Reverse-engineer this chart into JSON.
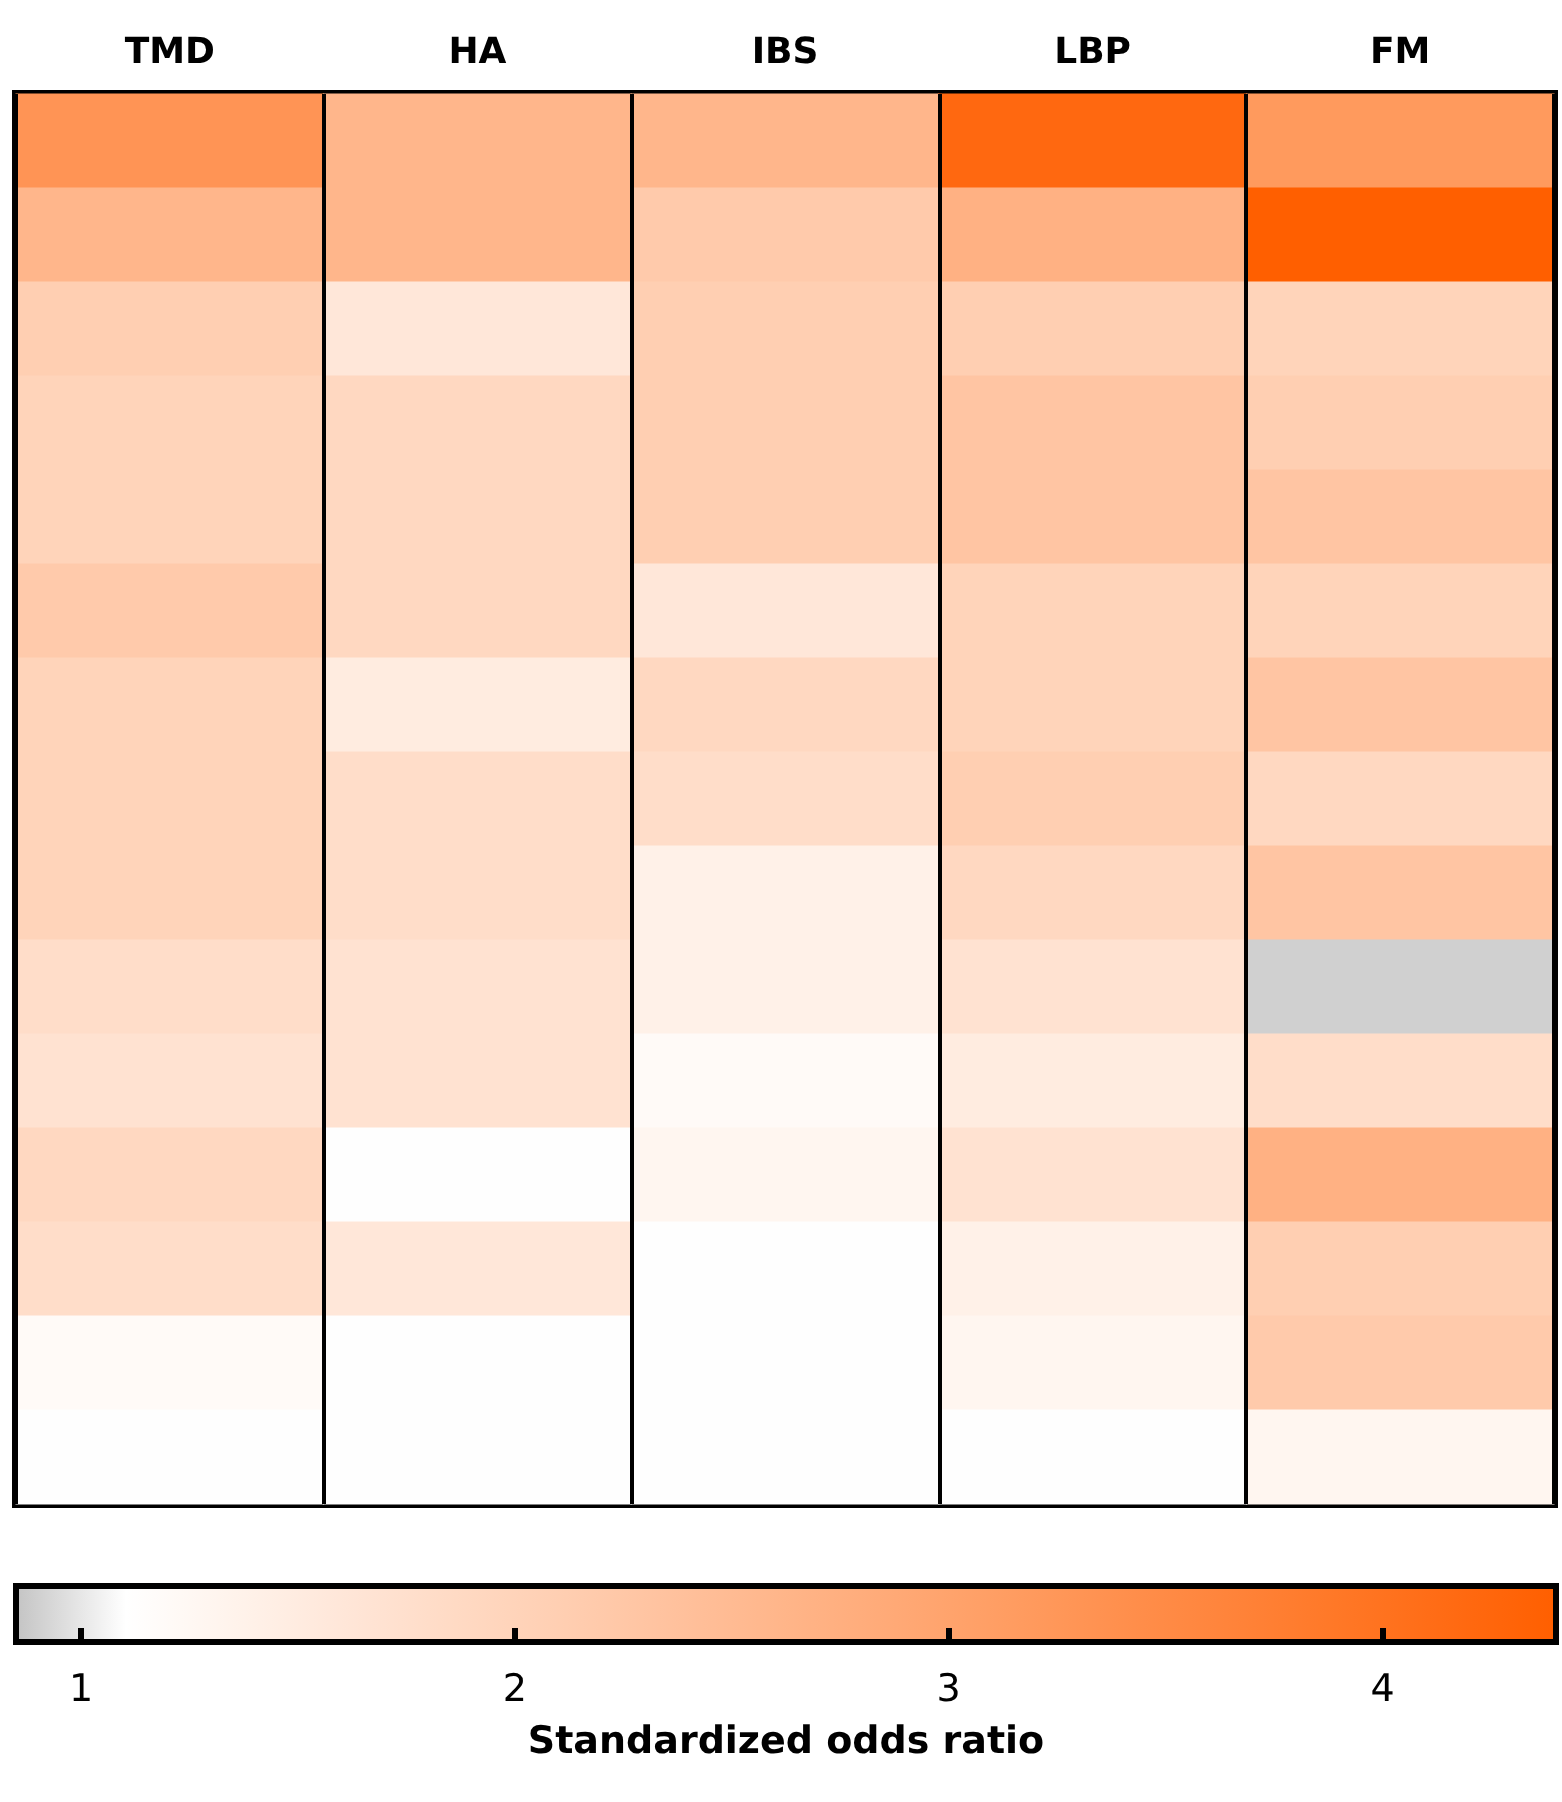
{
  "chart_data": {
    "type": "heatmap",
    "clabel": "Standardized odds ratio",
    "categories": [
      "TMD",
      "HA",
      "IBS",
      "LBP",
      "FM"
    ],
    "y_categories": [
      null,
      null,
      null,
      null,
      null,
      null,
      null,
      null,
      null,
      null,
      null,
      null,
      null,
      null,
      null
    ],
    "cells": [
      [
        3.3,
        2.6,
        2.6,
        4.2,
        3.2
      ],
      [
        2.6,
        2.6,
        2.2,
        2.7,
        4.4
      ],
      [
        2.1,
        1.6,
        2.1,
        2.1,
        2.0
      ],
      [
        2.0,
        1.9,
        2.1,
        2.3,
        2.1
      ],
      [
        2.0,
        1.9,
        2.1,
        2.3,
        2.3
      ],
      [
        2.2,
        1.9,
        1.6,
        2.0,
        2.0
      ],
      [
        2.0,
        1.5,
        1.9,
        2.0,
        2.3
      ],
      [
        2.0,
        1.8,
        1.8,
        2.1,
        1.9
      ],
      [
        2.0,
        1.8,
        1.4,
        1.9,
        2.3
      ],
      [
        1.8,
        1.7,
        1.4,
        1.7,
        0.9
      ],
      [
        1.7,
        1.7,
        1.2,
        1.5,
        1.8
      ],
      [
        1.9,
        1.1,
        1.3,
        1.7,
        2.7
      ],
      [
        1.8,
        1.6,
        1.1,
        1.4,
        2.1
      ],
      [
        1.2,
        1.1,
        1.1,
        1.3,
        2.2
      ],
      [
        1.1,
        1.1,
        1.1,
        1.1,
        1.3
      ]
    ],
    "clim": [
      0.85,
      4.4
    ],
    "cticks": [
      1,
      2,
      3,
      4
    ]
  }
}
